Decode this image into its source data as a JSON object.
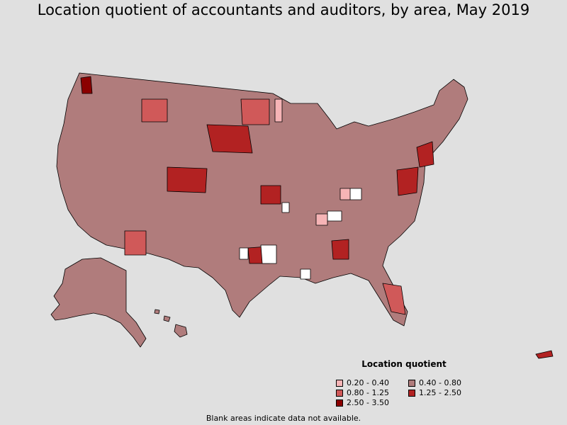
{
  "title": "Location quotient of accountants and auditors, by area, May 2019",
  "legend": {
    "title": "Location quotient",
    "items": [
      {
        "label": "0.20 - 0.40",
        "color": "#f6b4b6"
      },
      {
        "label": "0.40 - 0.80",
        "color": "#b07c7c"
      },
      {
        "label": "0.80 - 1.25",
        "color": "#d05959"
      },
      {
        "label": "1.25 - 2.50",
        "color": "#b22222"
      },
      {
        "label": "2.50 - 3.50",
        "color": "#8b0000"
      }
    ]
  },
  "footnote": "Blank areas indicate data not available.",
  "colors": {
    "background": "#e0e0e0",
    "base_area": "#b07c7c",
    "no_data": "#ffffff",
    "border": "#000000"
  }
}
